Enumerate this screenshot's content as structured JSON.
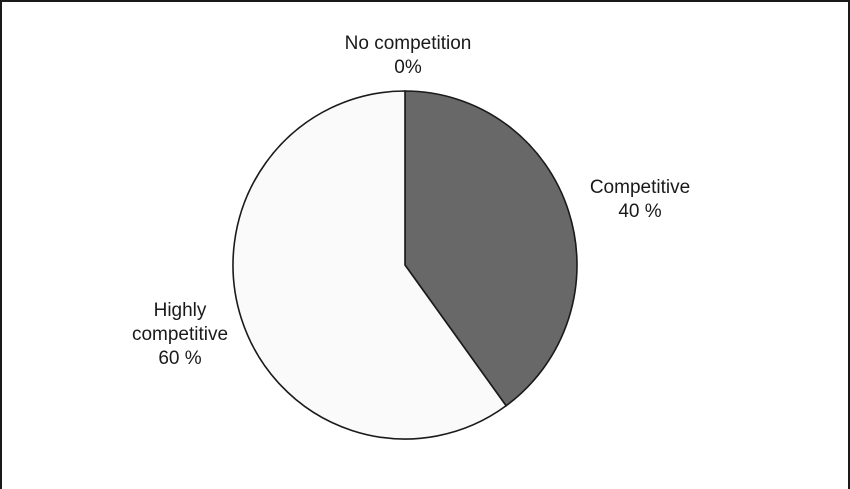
{
  "chart_data": {
    "type": "pie",
    "title": "",
    "slices": [
      {
        "label_lines": [
          "No competition",
          "0%"
        ],
        "value": 0,
        "color": "#ffffff"
      },
      {
        "label_lines": [
          "Competitive",
          "40 %"
        ],
        "value": 40,
        "color": "#686868"
      },
      {
        "label_lines": [
          "Highly",
          "competitive",
          "60 %"
        ],
        "value": 60,
        "color": "#fafafa"
      }
    ],
    "start_angle_deg": 0,
    "direction": "clockwise",
    "edge_color": "#1a1a1a"
  }
}
